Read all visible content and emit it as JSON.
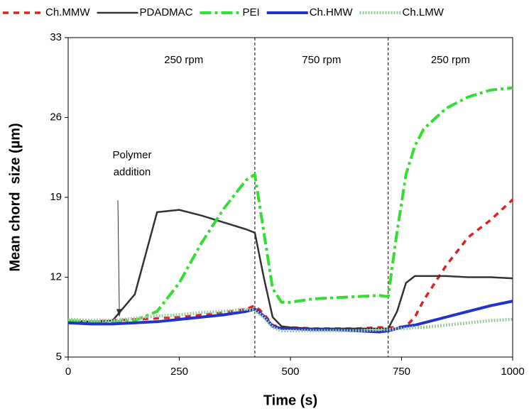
{
  "chart_data": {
    "type": "line",
    "x_label": "Time (s)",
    "y_label": "Mean chord  size (µm)",
    "x": [
      0,
      50,
      100,
      150,
      200,
      250,
      300,
      350,
      400,
      420,
      440,
      460,
      480,
      500,
      550,
      600,
      650,
      700,
      720,
      740,
      760,
      780,
      800,
      850,
      900,
      950,
      1000
    ],
    "series": [
      {
        "name": "Ch.MMW",
        "color": "#e02020",
        "dash": "8,7",
        "width": 3.5,
        "values": [
          8,
          8.1,
          8.2,
          8.3,
          8.4,
          8.5,
          8.7,
          8.9,
          9.2,
          9.5,
          8.8,
          7.8,
          7.6,
          7.6,
          7.5,
          7.5,
          7.5,
          7.6,
          7.6,
          7.6,
          7.7,
          8.5,
          10,
          13,
          15.5,
          17,
          18.8
        ]
      },
      {
        "name": "PDADMAC",
        "color": "#333333",
        "dash": "none",
        "width": 2.5,
        "values": [
          8.2,
          8.1,
          8.2,
          10.5,
          17.7,
          17.9,
          17.4,
          16.8,
          16.2,
          15.9,
          12,
          8.5,
          7.7,
          7.6,
          7.5,
          7.5,
          7.5,
          7.5,
          7.5,
          9,
          11.5,
          12.1,
          12.1,
          12.1,
          12,
          12,
          11.9
        ]
      },
      {
        "name": "PEI",
        "color": "#33dd33",
        "dash": "16,5,4,5",
        "width": 4,
        "values": [
          8.2,
          8.1,
          8.1,
          8.2,
          9,
          11.5,
          15,
          18,
          20.5,
          21,
          16,
          11,
          9.8,
          9.8,
          10.1,
          10.2,
          10.3,
          10.4,
          10.3,
          16,
          21,
          23.5,
          25,
          26.8,
          27.8,
          28.4,
          28.6
        ]
      },
      {
        "name": "Ch.HMW",
        "color": "#2233cc",
        "dash": "none",
        "width": 4,
        "values": [
          8,
          7.9,
          7.9,
          8,
          8.1,
          8.3,
          8.5,
          8.7,
          9,
          9.2,
          8.6,
          7.7,
          7.5,
          7.5,
          7.4,
          7.4,
          7.3,
          7.2,
          7.3,
          7.5,
          7.7,
          7.8,
          8,
          8.5,
          9,
          9.5,
          9.9
        ]
      },
      {
        "name": "Ch.LMW",
        "color": "#99cc99",
        "dash": "2,2",
        "width": 4.5,
        "values": [
          8.3,
          8.2,
          8.2,
          8.4,
          8.6,
          8.7,
          8.9,
          9,
          9.2,
          9.1,
          8.5,
          7.6,
          7.3,
          7.3,
          7.3,
          7.3,
          7.3,
          7.4,
          7.4,
          7.5,
          7.5,
          7.6,
          7.6,
          7.8,
          8,
          8.2,
          8.3
        ]
      }
    ],
    "xlim": [
      0,
      1000
    ],
    "xticks": [
      0,
      250,
      500,
      750,
      1000
    ],
    "ylim": [
      5,
      33
    ],
    "yticks": [
      5,
      12,
      19,
      26,
      33
    ],
    "phase_lines": [
      420,
      720
    ],
    "phase_labels": [
      {
        "text": "250 rpm",
        "x": 260
      },
      {
        "text": "750 rpm",
        "x": 570
      },
      {
        "text": "250 rpm",
        "x": 860
      }
    ],
    "annotation": {
      "lines": [
        "Polymer",
        "addition"
      ],
      "x": 120,
      "y": 8.4
    }
  }
}
